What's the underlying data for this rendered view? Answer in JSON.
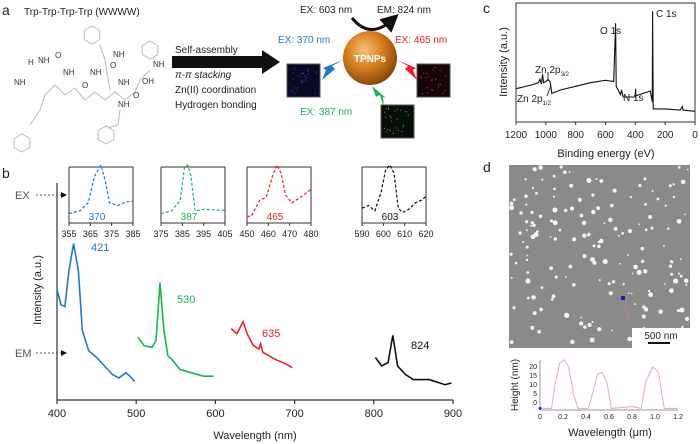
{
  "panel_labels": {
    "a": "a",
    "b": "b",
    "c": "c",
    "d": "d"
  },
  "panel_a": {
    "title": "Trp-Trp-Trp-Trp (WWWW)",
    "molecule_labels": [
      "H",
      "NH",
      "O",
      "NH",
      "NH",
      "O",
      "NH",
      "O",
      "NH",
      "OH",
      "O",
      "NH",
      "NH",
      "NH"
    ],
    "process": [
      "Self-assembly",
      "π-π stacking",
      "Zn(II) coordination",
      "Hydrogen bonding"
    ],
    "particle": "TPNPs",
    "ex603": "EX: 603 nm",
    "em824": "EM: 824 nm",
    "ex370": "EX: 370 nm",
    "ex465": "EX: 465 nm",
    "ex387": "EX: 387 nm",
    "colors": {
      "blue": "#1f78c8",
      "red": "#e8202a",
      "green": "#1db35a",
      "orange": "#d9801f"
    }
  },
  "chart_data": [
    {
      "id": "b",
      "type": "line",
      "xlabel": "Wavelength (nm)",
      "ylabel": "Intensity (a.u.)",
      "xlim": [
        400,
        900
      ],
      "xticks": [
        "400",
        "500",
        "600",
        "700",
        "800",
        "900"
      ],
      "row_labels": {
        "ex": "EX",
        "em": "EM"
      },
      "emission": [
        {
          "name": "421",
          "color": "#1f78c8",
          "x": [
            400,
            405,
            410,
            415,
            421,
            427,
            432,
            440,
            450,
            460,
            470,
            478,
            487,
            492,
            498
          ],
          "y": [
            65,
            56,
            55,
            76,
            92,
            76,
            41,
            29,
            25,
            20,
            15,
            13,
            16,
            14,
            11
          ]
        },
        {
          "name": "530",
          "color": "#1db35a",
          "x": [
            502,
            510,
            520,
            525,
            530,
            535,
            540,
            545,
            555,
            570,
            585,
            598
          ],
          "y": [
            37,
            32,
            31,
            35,
            69,
            41,
            26,
            24,
            18,
            16,
            14,
            14
          ]
        },
        {
          "name": "635",
          "color": "#e8202a",
          "x": [
            620,
            627,
            635,
            640,
            648,
            655,
            657,
            660,
            675,
            690,
            697
          ],
          "y": [
            42,
            39,
            46,
            39,
            32,
            30,
            33,
            28,
            24,
            21,
            19
          ]
        },
        {
          "name": "824",
          "color": "#111111",
          "x": [
            802,
            810,
            818,
            824,
            830,
            840,
            850,
            870,
            890,
            898
          ],
          "y": [
            25,
            20,
            22,
            38,
            20,
            15,
            12,
            12,
            9,
            10
          ]
        }
      ],
      "excitation_insets": [
        {
          "peak": "370",
          "color": "#1f78c8",
          "xlim": [
            355,
            385
          ],
          "xticks": [
            "355",
            "365",
            "375",
            "385"
          ],
          "x": [
            355,
            360,
            364,
            367,
            370,
            372,
            374,
            378,
            382,
            385
          ],
          "y": [
            0.1,
            0.15,
            0.3,
            0.8,
            1.0,
            0.7,
            0.3,
            0.25,
            0.32,
            0.33
          ]
        },
        {
          "peak": "387",
          "color": "#1db35a",
          "xlim": [
            375,
            405
          ],
          "xticks": [
            "375",
            "385",
            "395",
            "405"
          ],
          "x": [
            375,
            380,
            384,
            386,
            387.5,
            389,
            391,
            395,
            400,
            405
          ],
          "y": [
            0.1,
            0.15,
            0.35,
            0.95,
            1.0,
            0.8,
            0.15,
            0.18,
            0.17,
            0.16
          ]
        },
        {
          "peak": "465",
          "color": "#e8202a",
          "xlim": [
            450,
            480
          ],
          "xticks": [
            "450",
            "460",
            "470",
            "480"
          ],
          "x": [
            450,
            452,
            456,
            459,
            462,
            464,
            466,
            468,
            471,
            475,
            480
          ],
          "y": [
            0.05,
            0.05,
            0.35,
            0.4,
            0.8,
            1.0,
            0.85,
            0.45,
            0.3,
            0.4,
            0.55
          ]
        },
        {
          "peak": "603",
          "color": "#111111",
          "xlim": [
            590,
            620
          ],
          "xticks": [
            "590",
            "600",
            "610",
            "620"
          ],
          "x": [
            590,
            593,
            596,
            599,
            601,
            603,
            605,
            607,
            609,
            612,
            615,
            618,
            620
          ],
          "y": [
            0.2,
            0.25,
            0.15,
            0.5,
            0.9,
            1.0,
            0.85,
            0.2,
            0.12,
            0.18,
            0.3,
            0.35,
            0.42
          ]
        }
      ]
    },
    {
      "id": "c",
      "type": "line",
      "xlabel": "Binding energy (eV)",
      "ylabel": "Intensity (a.u.)",
      "xlim": [
        1200,
        0
      ],
      "xticks": [
        "1200",
        "1000",
        "800",
        "600",
        "400",
        "200",
        "0"
      ],
      "annotations": {
        "c1s": "C 1s",
        "o1s": "O 1s",
        "n1s": "N 1s",
        "zn32": "Zn 2p",
        "zn32_sub": "3/2",
        "zn12": "Zn 2p",
        "zn12_sub": "1/2"
      },
      "x": [
        1200,
        1100,
        1050,
        1040,
        1030,
        1022,
        1015,
        1000,
        985,
        970,
        960,
        900,
        800,
        700,
        600,
        545,
        532,
        528,
        500,
        492,
        485,
        480,
        400,
        398,
        396,
        300,
        286,
        284,
        280,
        200,
        100,
        85,
        80,
        0
      ],
      "y": [
        28,
        31,
        33,
        36,
        32,
        40,
        33,
        34,
        36,
        33,
        24,
        27,
        30,
        33,
        35,
        34,
        83,
        30,
        23,
        27,
        22,
        21,
        21,
        28,
        22,
        26,
        17,
        93,
        11,
        11,
        10,
        13,
        10,
        9
      ]
    },
    {
      "id": "d",
      "type": "line",
      "scale_bar": "500 nm",
      "xlabel": "Wavelength (μm)",
      "ylabel": "Height (nm)",
      "xlim": [
        0,
        1.2
      ],
      "ylim": [
        -4,
        25
      ],
      "xticks": [
        "0",
        "0.2",
        "0.4",
        "0.6",
        "0.8",
        "1.0",
        "1.2"
      ],
      "yticks": [
        "0",
        "5",
        "10",
        "15",
        "20"
      ],
      "x": [
        0,
        0.1,
        0.13,
        0.17,
        0.21,
        0.25,
        0.29,
        0.33,
        0.42,
        0.46,
        0.5,
        0.54,
        0.58,
        0.62,
        0.8,
        0.88,
        0.92,
        0.98,
        1.03,
        1.08,
        1.2
      ],
      "y": [
        -3,
        -3,
        10,
        22,
        24,
        20,
        5,
        -3,
        -3,
        6,
        16,
        17,
        12,
        -3,
        -2,
        -3,
        12,
        20,
        17,
        -3,
        -3
      ]
    }
  ]
}
